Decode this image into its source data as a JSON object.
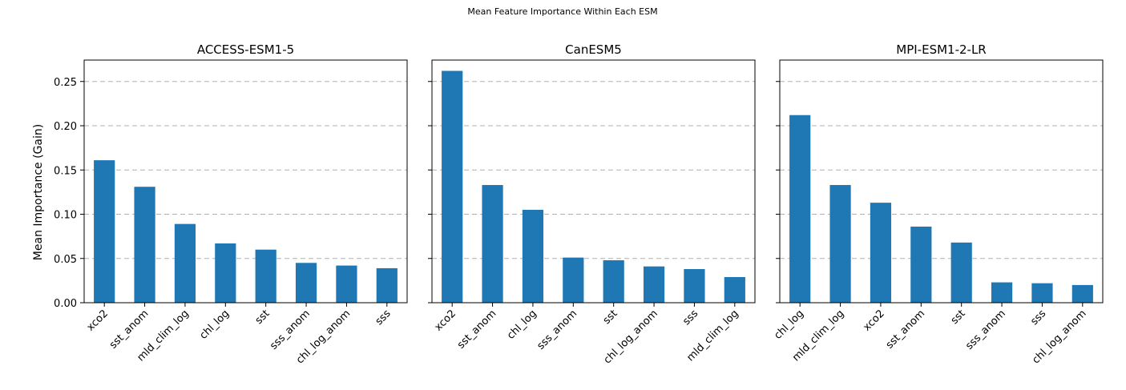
{
  "figure_title": "Mean Feature Importance Within Each ESM",
  "ylabel": "Mean Importance (Gain)",
  "bar_color": "#1f77b4",
  "grid_color": "#b0b0b0",
  "y_ticks": [
    "0.00",
    "0.05",
    "0.10",
    "0.15",
    "0.20",
    "0.25"
  ],
  "chart_data": [
    {
      "type": "bar",
      "title": "ACCESS-ESM1-5",
      "categories": [
        "xco2",
        "sst_anom",
        "mld_clim_log",
        "chl_log",
        "sst",
        "sss_anom",
        "chl_log_anom",
        "sss"
      ],
      "values": [
        0.161,
        0.131,
        0.089,
        0.067,
        0.06,
        0.045,
        0.042,
        0.039
      ],
      "ylabel": "Mean Importance (Gain)",
      "ylim": [
        0,
        0.275
      ],
      "grid": "y-dashed"
    },
    {
      "type": "bar",
      "title": "CanESM5",
      "categories": [
        "xco2",
        "sst_anom",
        "chl_log",
        "sss_anom",
        "sst",
        "chl_log_anom",
        "sss",
        "mld_clim_log"
      ],
      "values": [
        0.262,
        0.133,
        0.105,
        0.051,
        0.048,
        0.041,
        0.038,
        0.029
      ],
      "ylim": [
        0,
        0.275
      ],
      "grid": "y-dashed"
    },
    {
      "type": "bar",
      "title": "MPI-ESM1-2-LR",
      "categories": [
        "chl_log",
        "mld_clim_log",
        "xco2",
        "sst_anom",
        "sst",
        "sss_anom",
        "sss",
        "chl_log_anom"
      ],
      "values": [
        0.212,
        0.133,
        0.113,
        0.086,
        0.068,
        0.023,
        0.022,
        0.02
      ],
      "ylim": [
        0,
        0.275
      ],
      "grid": "y-dashed"
    }
  ]
}
